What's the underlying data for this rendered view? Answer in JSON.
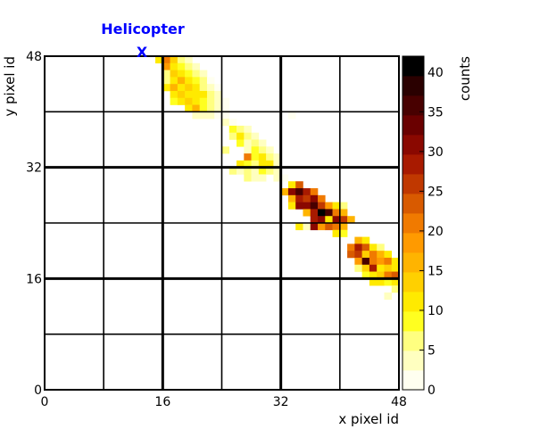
{
  "chart_data": {
    "type": "heatmap",
    "xlabel": "x pixel id",
    "ylabel": "y pixel id",
    "xlim": [
      0,
      48
    ],
    "ylim": [
      0,
      48
    ],
    "x_ticks": [
      "0",
      "16",
      "32",
      "48"
    ],
    "y_ticks": [
      "0",
      "16",
      "32",
      "48"
    ],
    "grid_major": [
      16,
      32
    ],
    "grid_minor": [
      8,
      24,
      40
    ],
    "colorbar": {
      "label": "counts",
      "range": [
        0,
        42
      ],
      "ticks": [
        "0",
        "5",
        "10",
        "15",
        "20",
        "25",
        "30",
        "35",
        "40"
      ],
      "palette": [
        "#fffff0",
        "#ffffc0",
        "#ffff80",
        "#ffff20",
        "#ffea00",
        "#ffd000",
        "#ffb400",
        "#ff9a00",
        "#f07a00",
        "#d85a00",
        "#c03800",
        "#a81a00",
        "#8a0800",
        "#6a0000",
        "#480000",
        "#2a0000",
        "#000000"
      ]
    },
    "annotation": {
      "text": "Helicopter",
      "marker": "X",
      "x": 13.5,
      "y": 48
    },
    "cells": [
      [
        15,
        47,
        12
      ],
      [
        16,
        47,
        22
      ],
      [
        17,
        47,
        14
      ],
      [
        18,
        47,
        6
      ],
      [
        19,
        47,
        4
      ],
      [
        16,
        46,
        18
      ],
      [
        17,
        46,
        10
      ],
      [
        18,
        46,
        8
      ],
      [
        19,
        46,
        5
      ],
      [
        20,
        46,
        3
      ],
      [
        16,
        45,
        7
      ],
      [
        17,
        45,
        14
      ],
      [
        18,
        45,
        10
      ],
      [
        19,
        45,
        8
      ],
      [
        20,
        45,
        6
      ],
      [
        21,
        45,
        3
      ],
      [
        16,
        44,
        5
      ],
      [
        17,
        44,
        12
      ],
      [
        18,
        44,
        15
      ],
      [
        19,
        44,
        12
      ],
      [
        20,
        44,
        9
      ],
      [
        21,
        44,
        5
      ],
      [
        22,
        44,
        2
      ],
      [
        16,
        43,
        10
      ],
      [
        17,
        43,
        15
      ],
      [
        18,
        43,
        12
      ],
      [
        19,
        43,
        14
      ],
      [
        20,
        43,
        10
      ],
      [
        21,
        43,
        6
      ],
      [
        22,
        43,
        4
      ],
      [
        23,
        43,
        2
      ],
      [
        17,
        42,
        12
      ],
      [
        18,
        42,
        14
      ],
      [
        19,
        42,
        10
      ],
      [
        20,
        42,
        11
      ],
      [
        21,
        42,
        12
      ],
      [
        22,
        42,
        6
      ],
      [
        23,
        42,
        3
      ],
      [
        17,
        41,
        8
      ],
      [
        18,
        41,
        10
      ],
      [
        19,
        41,
        14
      ],
      [
        20,
        41,
        12
      ],
      [
        21,
        41,
        8
      ],
      [
        22,
        41,
        5
      ],
      [
        23,
        41,
        3
      ],
      [
        24,
        41,
        2
      ],
      [
        19,
        40,
        12
      ],
      [
        20,
        40,
        15
      ],
      [
        21,
        40,
        8
      ],
      [
        22,
        40,
        6
      ],
      [
        23,
        40,
        4
      ],
      [
        24,
        40,
        2
      ],
      [
        20,
        39,
        4
      ],
      [
        21,
        39,
        4
      ],
      [
        22,
        39,
        3
      ],
      [
        23,
        39,
        2
      ],
      [
        24,
        39,
        1
      ],
      [
        33,
        39,
        2
      ],
      [
        24,
        38,
        3
      ],
      [
        25,
        38,
        2
      ],
      [
        25,
        37,
        8
      ],
      [
        26,
        37,
        6
      ],
      [
        27,
        37,
        4
      ],
      [
        25,
        36,
        6
      ],
      [
        26,
        36,
        10
      ],
      [
        27,
        36,
        6
      ],
      [
        28,
        36,
        3
      ],
      [
        26,
        35,
        8
      ],
      [
        27,
        35,
        4
      ],
      [
        28,
        35,
        6
      ],
      [
        29,
        35,
        4
      ],
      [
        24,
        34,
        6
      ],
      [
        27,
        34,
        3
      ],
      [
        28,
        34,
        9
      ],
      [
        29,
        34,
        6
      ],
      [
        30,
        34,
        4
      ],
      [
        27,
        33,
        20
      ],
      [
        28,
        33,
        8
      ],
      [
        29,
        33,
        10
      ],
      [
        30,
        33,
        6
      ],
      [
        31,
        33,
        3
      ],
      [
        26,
        32,
        10
      ],
      [
        27,
        32,
        8
      ],
      [
        28,
        32,
        6
      ],
      [
        29,
        32,
        12
      ],
      [
        30,
        32,
        10
      ],
      [
        31,
        32,
        4
      ],
      [
        25,
        31,
        6
      ],
      [
        26,
        31,
        4
      ],
      [
        27,
        31,
        5
      ],
      [
        28,
        31,
        4
      ],
      [
        29,
        31,
        8
      ],
      [
        30,
        31,
        6
      ],
      [
        31,
        31,
        4
      ],
      [
        27,
        30,
        6
      ],
      [
        28,
        30,
        4
      ],
      [
        29,
        30,
        3
      ],
      [
        31,
        30,
        4
      ],
      [
        32,
        30,
        2
      ],
      [
        33,
        29,
        10
      ],
      [
        34,
        29,
        24
      ],
      [
        32,
        28,
        15
      ],
      [
        33,
        28,
        32
      ],
      [
        34,
        28,
        35
      ],
      [
        35,
        28,
        28
      ],
      [
        36,
        28,
        22
      ],
      [
        33,
        27,
        15
      ],
      [
        34,
        27,
        28
      ],
      [
        35,
        27,
        25
      ],
      [
        36,
        27,
        30
      ],
      [
        37,
        27,
        20
      ],
      [
        33,
        26,
        10
      ],
      [
        34,
        26,
        30
      ],
      [
        35,
        26,
        32
      ],
      [
        36,
        26,
        35
      ],
      [
        37,
        26,
        26
      ],
      [
        38,
        26,
        18
      ],
      [
        39,
        26,
        12
      ],
      [
        40,
        26,
        6
      ],
      [
        35,
        25,
        15
      ],
      [
        36,
        25,
        28
      ],
      [
        37,
        25,
        40
      ],
      [
        38,
        25,
        35
      ],
      [
        39,
        25,
        22
      ],
      [
        40,
        25,
        15
      ],
      [
        36,
        24,
        28
      ],
      [
        37,
        24,
        32
      ],
      [
        38,
        24,
        10
      ],
      [
        39,
        24,
        30
      ],
      [
        40,
        24,
        25
      ],
      [
        41,
        24,
        15
      ],
      [
        34,
        23,
        10
      ],
      [
        35,
        23,
        4
      ],
      [
        36,
        23,
        30
      ],
      [
        37,
        23,
        18
      ],
      [
        38,
        23,
        24
      ],
      [
        39,
        23,
        22
      ],
      [
        40,
        23,
        16
      ],
      [
        39,
        22,
        12
      ],
      [
        40,
        22,
        8
      ],
      [
        42,
        21,
        15
      ],
      [
        43,
        21,
        12
      ],
      [
        41,
        20,
        20
      ],
      [
        42,
        20,
        28
      ],
      [
        43,
        20,
        24
      ],
      [
        44,
        20,
        12
      ],
      [
        45,
        20,
        6
      ],
      [
        41,
        19,
        24
      ],
      [
        42,
        19,
        25
      ],
      [
        43,
        19,
        14
      ],
      [
        44,
        19,
        22
      ],
      [
        45,
        19,
        16
      ],
      [
        46,
        19,
        10
      ],
      [
        42,
        18,
        18
      ],
      [
        43,
        18,
        35
      ],
      [
        44,
        18,
        20
      ],
      [
        45,
        18,
        18
      ],
      [
        46,
        18,
        20
      ],
      [
        47,
        18,
        12
      ],
      [
        42,
        17,
        6
      ],
      [
        43,
        17,
        14
      ],
      [
        44,
        17,
        28
      ],
      [
        45,
        17,
        10
      ],
      [
        46,
        17,
        14
      ],
      [
        47,
        17,
        12
      ],
      [
        43,
        16,
        8
      ],
      [
        44,
        16,
        10
      ],
      [
        45,
        16,
        14
      ],
      [
        46,
        16,
        20
      ],
      [
        47,
        16,
        24
      ],
      [
        44,
        15,
        12
      ],
      [
        45,
        15,
        10
      ],
      [
        46,
        15,
        8
      ],
      [
        47,
        15,
        10
      ],
      [
        47,
        14,
        6
      ],
      [
        46,
        13,
        3
      ]
    ]
  }
}
